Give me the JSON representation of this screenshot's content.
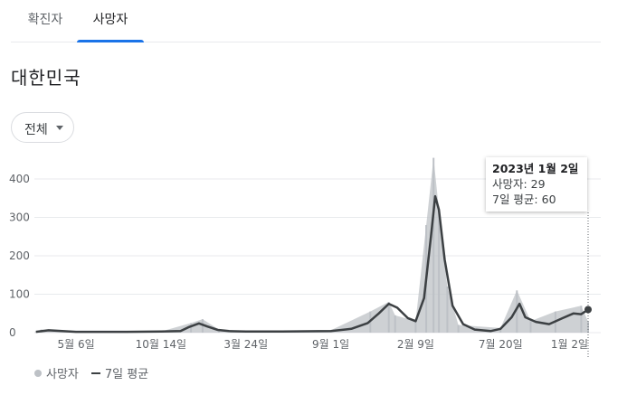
{
  "tabs": [
    {
      "label": "확진자",
      "selected": false
    },
    {
      "label": "사망자",
      "selected": true
    }
  ],
  "region": "대한민국",
  "scope": {
    "label": "전체"
  },
  "tooltip": {
    "date": "2023년 1월 2일",
    "deaths_label": "사망자: 29",
    "avg_label": "7일 평균: 60"
  },
  "legend": {
    "bars_label": "사망자",
    "line_label": "7일 평균"
  },
  "colors": {
    "bars": "#bdc1c6",
    "line": "#3c4043",
    "tab_accent": "#1a73e8"
  },
  "chart_data": {
    "type": "bar",
    "y_ticks": [
      0,
      100,
      200,
      300,
      400
    ],
    "ylim": [
      0,
      450
    ],
    "x_tick_labels": [
      "5월 6일",
      "10월 14일",
      "3월 24일",
      "9월 1일",
      "2월 9일",
      "7월 20일",
      "1월 2일"
    ],
    "series": [
      {
        "name": "사망자",
        "kind": "bar",
        "x": [
          "2020-03-01",
          "2020-05-06",
          "2020-08-10",
          "2020-10-14",
          "2020-12-10",
          "2021-01-01",
          "2021-02-01",
          "2021-03-24",
          "2021-06-01",
          "2021-09-01",
          "2021-11-15",
          "2021-12-20",
          "2022-01-01",
          "2022-02-09",
          "2022-03-01",
          "2022-03-15",
          "2022-03-25",
          "2022-04-10",
          "2022-05-01",
          "2022-07-20",
          "2022-08-20",
          "2022-09-15",
          "2022-11-01",
          "2022-12-20",
          "2023-01-02"
        ],
        "values": [
          8,
          2,
          2,
          3,
          25,
          35,
          8,
          4,
          3,
          6,
          55,
          80,
          45,
          30,
          280,
          455,
          320,
          120,
          20,
          12,
          110,
          30,
          55,
          70,
          29
        ]
      },
      {
        "name": "7일 평균",
        "kind": "line",
        "x": [
          "2020-02-20",
          "2020-03-15",
          "2020-05-06",
          "2020-08-10",
          "2020-10-14",
          "2020-11-20",
          "2020-12-05",
          "2020-12-25",
          "2021-01-10",
          "2021-01-30",
          "2021-02-20",
          "2021-03-24",
          "2021-06-01",
          "2021-09-01",
          "2021-10-10",
          "2021-11-10",
          "2021-12-01",
          "2021-12-20",
          "2022-01-05",
          "2022-01-25",
          "2022-02-09",
          "2022-02-25",
          "2022-03-10",
          "2022-03-18",
          "2022-03-25",
          "2022-04-05",
          "2022-04-20",
          "2022-05-10",
          "2022-06-01",
          "2022-07-01",
          "2022-07-20",
          "2022-08-10",
          "2022-08-25",
          "2022-09-05",
          "2022-09-25",
          "2022-10-20",
          "2022-11-15",
          "2022-12-05",
          "2022-12-20",
          "2023-01-02"
        ],
        "values": [
          2,
          6,
          2,
          2,
          3,
          4,
          14,
          24,
          16,
          7,
          4,
          3,
          3,
          4,
          10,
          25,
          50,
          75,
          65,
          38,
          30,
          90,
          250,
          355,
          320,
          190,
          70,
          22,
          8,
          4,
          10,
          40,
          75,
          40,
          28,
          22,
          38,
          50,
          48,
          60
        ]
      }
    ]
  }
}
